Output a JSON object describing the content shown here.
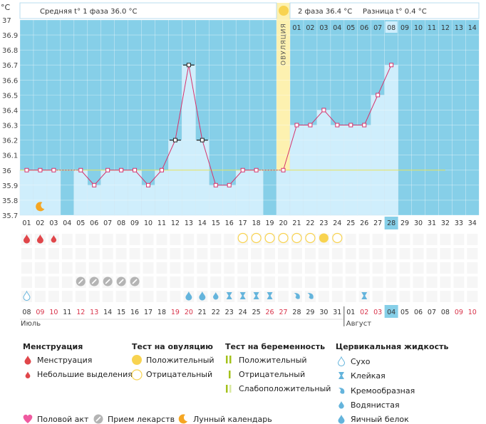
{
  "header": {
    "unit": "°C",
    "phase1": "Средняя t° 1 фаза 36.0 °C",
    "phase2": "2 фаза 36.4 °C",
    "difference": "Разница t° 0.4 °C",
    "ovulation_label": "ОВУЛЯЦИЯ"
  },
  "chart_data": {
    "type": "line",
    "title": "",
    "ylabel": "°C",
    "ylim": [
      35.7,
      37.0
    ],
    "yticks": [
      "37",
      "36.9",
      "36.8",
      "36.7",
      "36.6",
      "36.5",
      "36.4",
      "36.3",
      "36.2",
      "36.1",
      "36",
      "35.9",
      "35.8",
      "35.7"
    ],
    "cycle_days": [
      "01",
      "02",
      "03",
      "04",
      "05",
      "06",
      "07",
      "08",
      "09",
      "10",
      "11",
      "12",
      "13",
      "14",
      "15",
      "16",
      "17",
      "18",
      "19",
      "20",
      "21",
      "22",
      "23",
      "24",
      "25",
      "26",
      "27",
      "28",
      "29",
      "30",
      "31",
      "32",
      "33",
      "34"
    ],
    "current_day": "28",
    "second_phase_days": [
      "01",
      "02",
      "03",
      "04",
      "05",
      "06",
      "07",
      "08",
      "09",
      "10",
      "11",
      "12",
      "13",
      "14"
    ],
    "highlighted_phase_day": "08",
    "series": [
      {
        "values": [
          36.0,
          36.0,
          36.0,
          null,
          36.0,
          35.9,
          36.0,
          36.0,
          36.0,
          35.9,
          36.0,
          36.2,
          36.7,
          36.2,
          35.9,
          35.9,
          36.0,
          36.0,
          null,
          36.0,
          36.3,
          36.3,
          36.4,
          36.3,
          36.3,
          36.3,
          36.5,
          36.7,
          null,
          null,
          null,
          null,
          null,
          null
        ]
      }
    ],
    "coverline": 36.0,
    "ovulation_day": "20",
    "dates": [
      "08",
      "09",
      "10",
      "11",
      "12",
      "13",
      "14",
      "15",
      "16",
      "17",
      "18",
      "19",
      "20",
      "21",
      "22",
      "23",
      "24",
      "25",
      "26",
      "27",
      "28",
      "29",
      "30",
      "31",
      "01",
      "02",
      "03",
      "04",
      "05",
      "06",
      "07",
      "08",
      "09",
      "10"
    ],
    "weekend_dates_red": [
      "12",
      "13",
      "19",
      "20",
      "26",
      "27",
      "02",
      "03",
      "09",
      "10"
    ],
    "highlighted_date": "04",
    "months": [
      "Июль",
      "Август"
    ],
    "markers": {
      "menstruation": [
        "01",
        "02",
        "03"
      ],
      "ovulation_negative": [
        "17",
        "18",
        "19",
        "20",
        "21",
        "22",
        "24"
      ],
      "ovulation_positive": [
        "23"
      ],
      "medication": [
        "05",
        "06",
        "07",
        "08",
        "09"
      ],
      "moon": [
        "02"
      ],
      "cervical_dry": [
        "01"
      ],
      "cervical_eggwhite": [
        "13",
        "14"
      ],
      "cervical_watery": [
        "15"
      ],
      "cervical_sticky": [
        "16",
        "17",
        "18",
        "19",
        "26"
      ],
      "cervical_creamy": [
        "21",
        "22"
      ]
    }
  },
  "legend": {
    "menstruation": {
      "title": "Менструация",
      "items": [
        "Менструация",
        "Небольшие выделения"
      ]
    },
    "ovulation_test": {
      "title": "Тест на овуляцию",
      "items": [
        "Положительный",
        "Отрицательный"
      ]
    },
    "pregnancy_test": {
      "title": "Тест на беременность",
      "items": [
        "Положительный",
        "Отрицательный",
        "Слабоположительный"
      ]
    },
    "cervical": {
      "title": "Цервикальная жидкость",
      "items": [
        "Сухо",
        "Клейкая",
        "Кремообразная",
        "Водянистая",
        "Яичный белок"
      ]
    },
    "other": [
      "Половой акт",
      "Прием лекарств",
      "Лунный календарь"
    ]
  },
  "colors": {
    "sky": "#86cfe8",
    "bar": "#cfeefc",
    "bar_edge": "#aad6ea",
    "ovulation": "#fdf1b0",
    "line": "#d6336c",
    "red": "#e0464a",
    "yellow": "#f8d350",
    "green": "#a4c21c",
    "blue": "#64b4dc",
    "orange": "#f5a623",
    "pink": "#ef5aa0",
    "gray": "#b4b4b4"
  }
}
